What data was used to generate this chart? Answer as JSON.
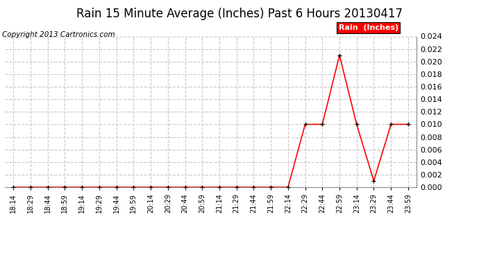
{
  "title": "Rain 15 Minute Average (Inches) Past 6 Hours 20130417",
  "copyright": "Copyright 2013 Cartronics.com",
  "legend_label": "Rain  (Inches)",
  "x_labels": [
    "18:14",
    "18:29",
    "18:44",
    "18:59",
    "19:14",
    "19:29",
    "19:44",
    "19:59",
    "20:14",
    "20:29",
    "20:44",
    "20:59",
    "21:14",
    "21:29",
    "21:44",
    "21:59",
    "22:14",
    "22:29",
    "22:44",
    "22:59",
    "23:14",
    "23:29",
    "23:44",
    "23:59"
  ],
  "y_values": [
    0.0,
    0.0,
    0.0,
    0.0,
    0.0,
    0.0,
    0.0,
    0.0,
    0.0,
    0.0,
    0.0,
    0.0,
    0.0,
    0.0,
    0.0,
    0.0,
    0.0,
    0.01,
    0.01,
    0.021,
    0.01,
    0.001,
    0.01,
    0.01
  ],
  "ylim": [
    0.0,
    0.024
  ],
  "yticks": [
    0.0,
    0.002,
    0.004,
    0.006,
    0.008,
    0.01,
    0.012,
    0.014,
    0.016,
    0.018,
    0.02,
    0.022,
    0.024
  ],
  "line_color": "red",
  "marker_color": "black",
  "bg_color": "#ffffff",
  "grid_color": "#c8c8c8",
  "title_fontsize": 12,
  "copyright_fontsize": 7.5,
  "legend_bg": "red",
  "legend_text_color": "white"
}
